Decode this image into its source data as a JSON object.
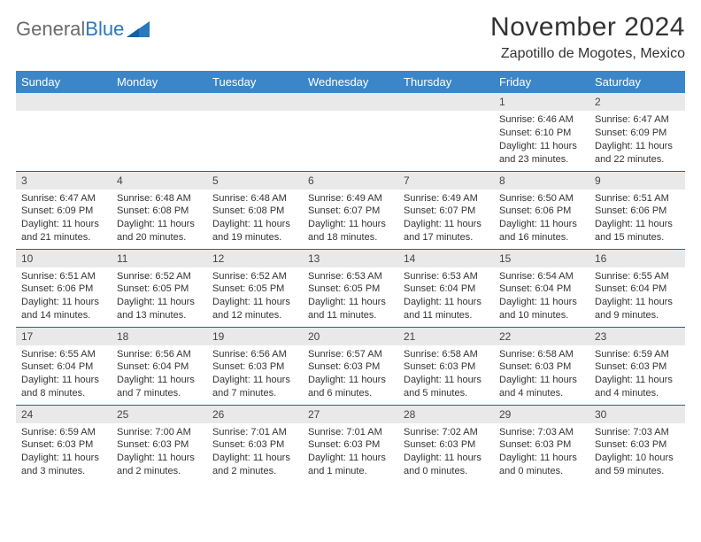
{
  "brand": {
    "part1": "General",
    "part2": "Blue"
  },
  "title": "November 2024",
  "location": "Zapotillo de Mogotes, Mexico",
  "colors": {
    "header_bg": "#3a86c8",
    "header_text": "#ffffff",
    "daynum_bg": "#e9e9e9",
    "row_border": "#2b5f8f",
    "body_text": "#333333",
    "brand_gray": "#6b6b6b",
    "brand_blue": "#2a78bd"
  },
  "type": "table",
  "day_headers": [
    "Sunday",
    "Monday",
    "Tuesday",
    "Wednesday",
    "Thursday",
    "Friday",
    "Saturday"
  ],
  "weeks": [
    [
      null,
      null,
      null,
      null,
      null,
      {
        "n": "1",
        "sr": "6:46 AM",
        "ss": "6:10 PM",
        "dl": "11 hours and 23 minutes."
      },
      {
        "n": "2",
        "sr": "6:47 AM",
        "ss": "6:09 PM",
        "dl": "11 hours and 22 minutes."
      }
    ],
    [
      {
        "n": "3",
        "sr": "6:47 AM",
        "ss": "6:09 PM",
        "dl": "11 hours and 21 minutes."
      },
      {
        "n": "4",
        "sr": "6:48 AM",
        "ss": "6:08 PM",
        "dl": "11 hours and 20 minutes."
      },
      {
        "n": "5",
        "sr": "6:48 AM",
        "ss": "6:08 PM",
        "dl": "11 hours and 19 minutes."
      },
      {
        "n": "6",
        "sr": "6:49 AM",
        "ss": "6:07 PM",
        "dl": "11 hours and 18 minutes."
      },
      {
        "n": "7",
        "sr": "6:49 AM",
        "ss": "6:07 PM",
        "dl": "11 hours and 17 minutes."
      },
      {
        "n": "8",
        "sr": "6:50 AM",
        "ss": "6:06 PM",
        "dl": "11 hours and 16 minutes."
      },
      {
        "n": "9",
        "sr": "6:51 AM",
        "ss": "6:06 PM",
        "dl": "11 hours and 15 minutes."
      }
    ],
    [
      {
        "n": "10",
        "sr": "6:51 AM",
        "ss": "6:06 PM",
        "dl": "11 hours and 14 minutes."
      },
      {
        "n": "11",
        "sr": "6:52 AM",
        "ss": "6:05 PM",
        "dl": "11 hours and 13 minutes."
      },
      {
        "n": "12",
        "sr": "6:52 AM",
        "ss": "6:05 PM",
        "dl": "11 hours and 12 minutes."
      },
      {
        "n": "13",
        "sr": "6:53 AM",
        "ss": "6:05 PM",
        "dl": "11 hours and 11 minutes."
      },
      {
        "n": "14",
        "sr": "6:53 AM",
        "ss": "6:04 PM",
        "dl": "11 hours and 11 minutes."
      },
      {
        "n": "15",
        "sr": "6:54 AM",
        "ss": "6:04 PM",
        "dl": "11 hours and 10 minutes."
      },
      {
        "n": "16",
        "sr": "6:55 AM",
        "ss": "6:04 PM",
        "dl": "11 hours and 9 minutes."
      }
    ],
    [
      {
        "n": "17",
        "sr": "6:55 AM",
        "ss": "6:04 PM",
        "dl": "11 hours and 8 minutes."
      },
      {
        "n": "18",
        "sr": "6:56 AM",
        "ss": "6:04 PM",
        "dl": "11 hours and 7 minutes."
      },
      {
        "n": "19",
        "sr": "6:56 AM",
        "ss": "6:03 PM",
        "dl": "11 hours and 7 minutes."
      },
      {
        "n": "20",
        "sr": "6:57 AM",
        "ss": "6:03 PM",
        "dl": "11 hours and 6 minutes."
      },
      {
        "n": "21",
        "sr": "6:58 AM",
        "ss": "6:03 PM",
        "dl": "11 hours and 5 minutes."
      },
      {
        "n": "22",
        "sr": "6:58 AM",
        "ss": "6:03 PM",
        "dl": "11 hours and 4 minutes."
      },
      {
        "n": "23",
        "sr": "6:59 AM",
        "ss": "6:03 PM",
        "dl": "11 hours and 4 minutes."
      }
    ],
    [
      {
        "n": "24",
        "sr": "6:59 AM",
        "ss": "6:03 PM",
        "dl": "11 hours and 3 minutes."
      },
      {
        "n": "25",
        "sr": "7:00 AM",
        "ss": "6:03 PM",
        "dl": "11 hours and 2 minutes."
      },
      {
        "n": "26",
        "sr": "7:01 AM",
        "ss": "6:03 PM",
        "dl": "11 hours and 2 minutes."
      },
      {
        "n": "27",
        "sr": "7:01 AM",
        "ss": "6:03 PM",
        "dl": "11 hours and 1 minute."
      },
      {
        "n": "28",
        "sr": "7:02 AM",
        "ss": "6:03 PM",
        "dl": "11 hours and 0 minutes."
      },
      {
        "n": "29",
        "sr": "7:03 AM",
        "ss": "6:03 PM",
        "dl": "11 hours and 0 minutes."
      },
      {
        "n": "30",
        "sr": "7:03 AM",
        "ss": "6:03 PM",
        "dl": "10 hours and 59 minutes."
      }
    ]
  ],
  "labels": {
    "sunrise": "Sunrise:",
    "sunset": "Sunset:",
    "daylight": "Daylight:"
  }
}
